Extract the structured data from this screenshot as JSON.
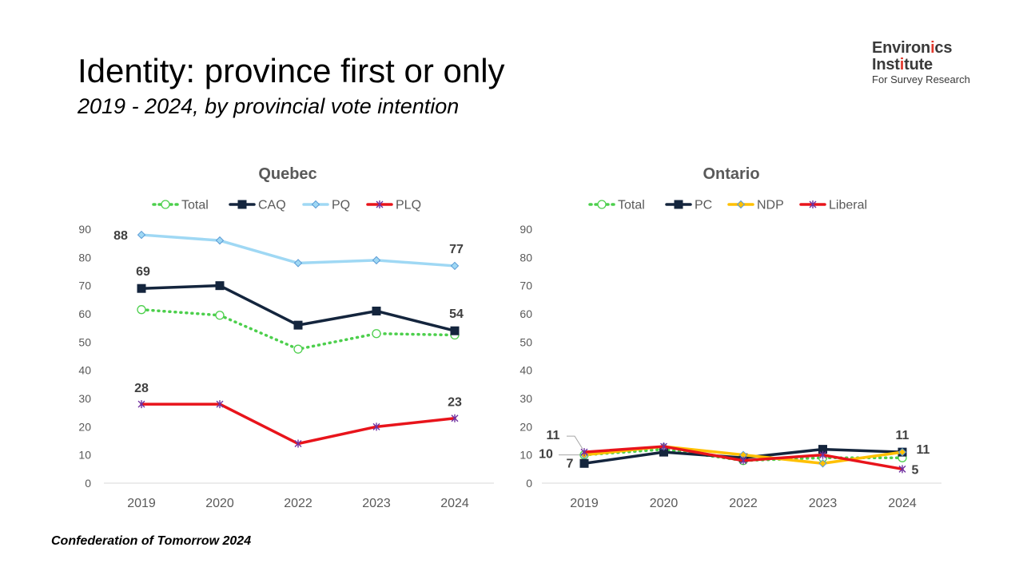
{
  "header": {
    "title": "Identity: province first or only",
    "subtitle": "2019 - 2024, by provincial vote intention"
  },
  "logo": {
    "line1_a": "Environ",
    "line1_b": "i",
    "line1_c": "cs",
    "line2_a": "Inst",
    "line2_b": "i",
    "line2_c": "tute",
    "line3": "For Survey Research",
    "accent_color": "#e23a2e"
  },
  "footer": {
    "text": "Confederation of Tomorrow 2024"
  },
  "chart_data": [
    {
      "type": "line",
      "title": "Quebec",
      "categories": [
        "2019",
        "2020",
        "2022",
        "2023",
        "2024"
      ],
      "ylim": [
        0,
        90
      ],
      "yticks": [
        "0",
        "10",
        "20",
        "30",
        "40",
        "50",
        "60",
        "70",
        "80",
        "90"
      ],
      "grid": false,
      "legend_position": "top",
      "series": [
        {
          "name": "Total",
          "values": [
            61.5,
            59.5,
            47.5,
            53,
            52.5
          ],
          "color": "#4ccf4c",
          "dash": true,
          "marker": "circle",
          "labels": [
            null,
            null,
            null,
            null,
            null
          ]
        },
        {
          "name": "CAQ",
          "values": [
            69,
            70,
            56,
            61,
            54
          ],
          "color": "#14253d",
          "dash": false,
          "marker": "square",
          "labels": [
            "69",
            null,
            null,
            null,
            "54"
          ]
        },
        {
          "name": "PQ",
          "values": [
            88,
            86,
            78,
            79,
            77
          ],
          "color": "#9fd8f4",
          "dash": false,
          "marker": "diamond",
          "labels": [
            "88",
            null,
            null,
            null,
            "77"
          ]
        },
        {
          "name": "PLQ",
          "values": [
            28,
            28,
            14,
            20,
            23
          ],
          "color": "#e8141b",
          "dash": false,
          "marker": "star",
          "labels": [
            "28",
            null,
            null,
            null,
            "23"
          ]
        }
      ]
    },
    {
      "type": "line",
      "title": "Ontario",
      "categories": [
        "2019",
        "2020",
        "2022",
        "2023",
        "2024"
      ],
      "ylim": [
        0,
        90
      ],
      "yticks": [
        "0",
        "10",
        "20",
        "30",
        "40",
        "50",
        "60",
        "70",
        "80",
        "90"
      ],
      "grid": false,
      "legend_position": "top",
      "series": [
        {
          "name": "Total",
          "values": [
            10,
            12,
            8,
            9,
            9
          ],
          "color": "#4ccf4c",
          "dash": true,
          "marker": "circle",
          "labels": [
            "10",
            null,
            null,
            null,
            null
          ]
        },
        {
          "name": "PC",
          "values": [
            7,
            11,
            9,
            12,
            11
          ],
          "color": "#14253d",
          "dash": false,
          "marker": "square",
          "labels": [
            "7",
            null,
            null,
            null,
            "11"
          ]
        },
        {
          "name": "NDP",
          "values": [
            10,
            13,
            10,
            7,
            11
          ],
          "color": "#ffc000",
          "dash": false,
          "marker": "diamond",
          "labels": [
            null,
            null,
            null,
            null,
            "11"
          ]
        },
        {
          "name": "Liberal",
          "values": [
            11,
            13,
            8,
            10,
            5
          ],
          "color": "#e8141b",
          "dash": false,
          "marker": "star",
          "labels": [
            "11",
            null,
            null,
            null,
            "5"
          ]
        }
      ]
    }
  ]
}
